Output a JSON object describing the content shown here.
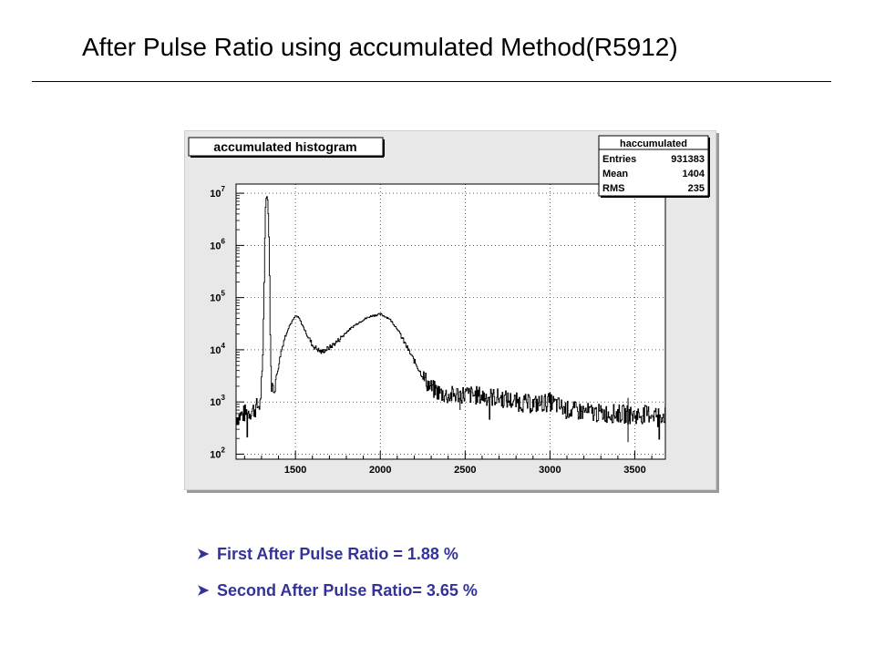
{
  "slide": {
    "title": "After Pulse Ratio using accumulated Method(R5912)",
    "bullets": [
      "First After Pulse Ratio = 1.88 %",
      "Second After Pulse Ratio= 3.65 %"
    ],
    "bullet_color": "#333399",
    "bullet_marker": "arrow-bullet-icon"
  },
  "chart_data": {
    "type": "line",
    "title": "accumulated histogram",
    "stats_box": {
      "name": "haccumulated",
      "rows": [
        {
          "label": "Entries",
          "value": "931383"
        },
        {
          "label": "Mean",
          "value": "1404"
        },
        {
          "label": "RMS",
          "value": "235"
        }
      ]
    },
    "log_y": true,
    "grid": true,
    "xlim": [
      1150,
      3680
    ],
    "ylim": [
      80,
      15000000
    ],
    "x_ticks": [
      1500,
      2000,
      2500,
      3000,
      3500
    ],
    "x_tick_labels": [
      "1500",
      "2000",
      "2500",
      "3000",
      "3500"
    ],
    "y_ticks": [
      100,
      1000,
      10000,
      100000,
      1000000,
      10000000
    ],
    "y_tick_labels": [
      {
        "base": "10",
        "exp": "2"
      },
      {
        "base": "10",
        "exp": "3"
      },
      {
        "base": "10",
        "exp": "4"
      },
      {
        "base": "10",
        "exp": "5"
      },
      {
        "base": "10",
        "exp": "6"
      },
      {
        "base": "10",
        "exp": "7"
      }
    ],
    "series": [
      {
        "x": [
          1150,
          1200,
          1250,
          1290,
          1305,
          1315,
          1320,
          1325,
          1330,
          1335,
          1340,
          1345,
          1350,
          1355,
          1360,
          1365,
          1375,
          1390,
          1410,
          1430,
          1460,
          1500,
          1520,
          1550,
          1600,
          1650,
          1700,
          1750,
          1800,
          1850,
          1900,
          1950,
          2000,
          2050,
          2100,
          2150,
          2200,
          2250,
          2300,
          2350,
          2400,
          2450,
          2500,
          2600,
          2700,
          2800,
          2900,
          3000,
          3100,
          3200,
          3300,
          3400,
          3500,
          3600,
          3680
        ],
        "y": [
          500,
          600,
          700,
          900,
          5000,
          300000,
          4000000,
          8000000,
          9000000,
          7000000,
          3000000,
          500000,
          20000,
          3000,
          2000,
          1800,
          2000,
          3500,
          8000,
          15000,
          28000,
          45000,
          40000,
          25000,
          12000,
          9000,
          11000,
          15000,
          22000,
          30000,
          38000,
          45000,
          48000,
          40000,
          25000,
          12000,
          6000,
          3000,
          1800,
          1500,
          1300,
          1400,
          1400,
          1300,
          1200,
          1000,
          900,
          1000,
          700,
          650,
          600,
          600,
          550,
          600,
          550
        ]
      }
    ]
  }
}
